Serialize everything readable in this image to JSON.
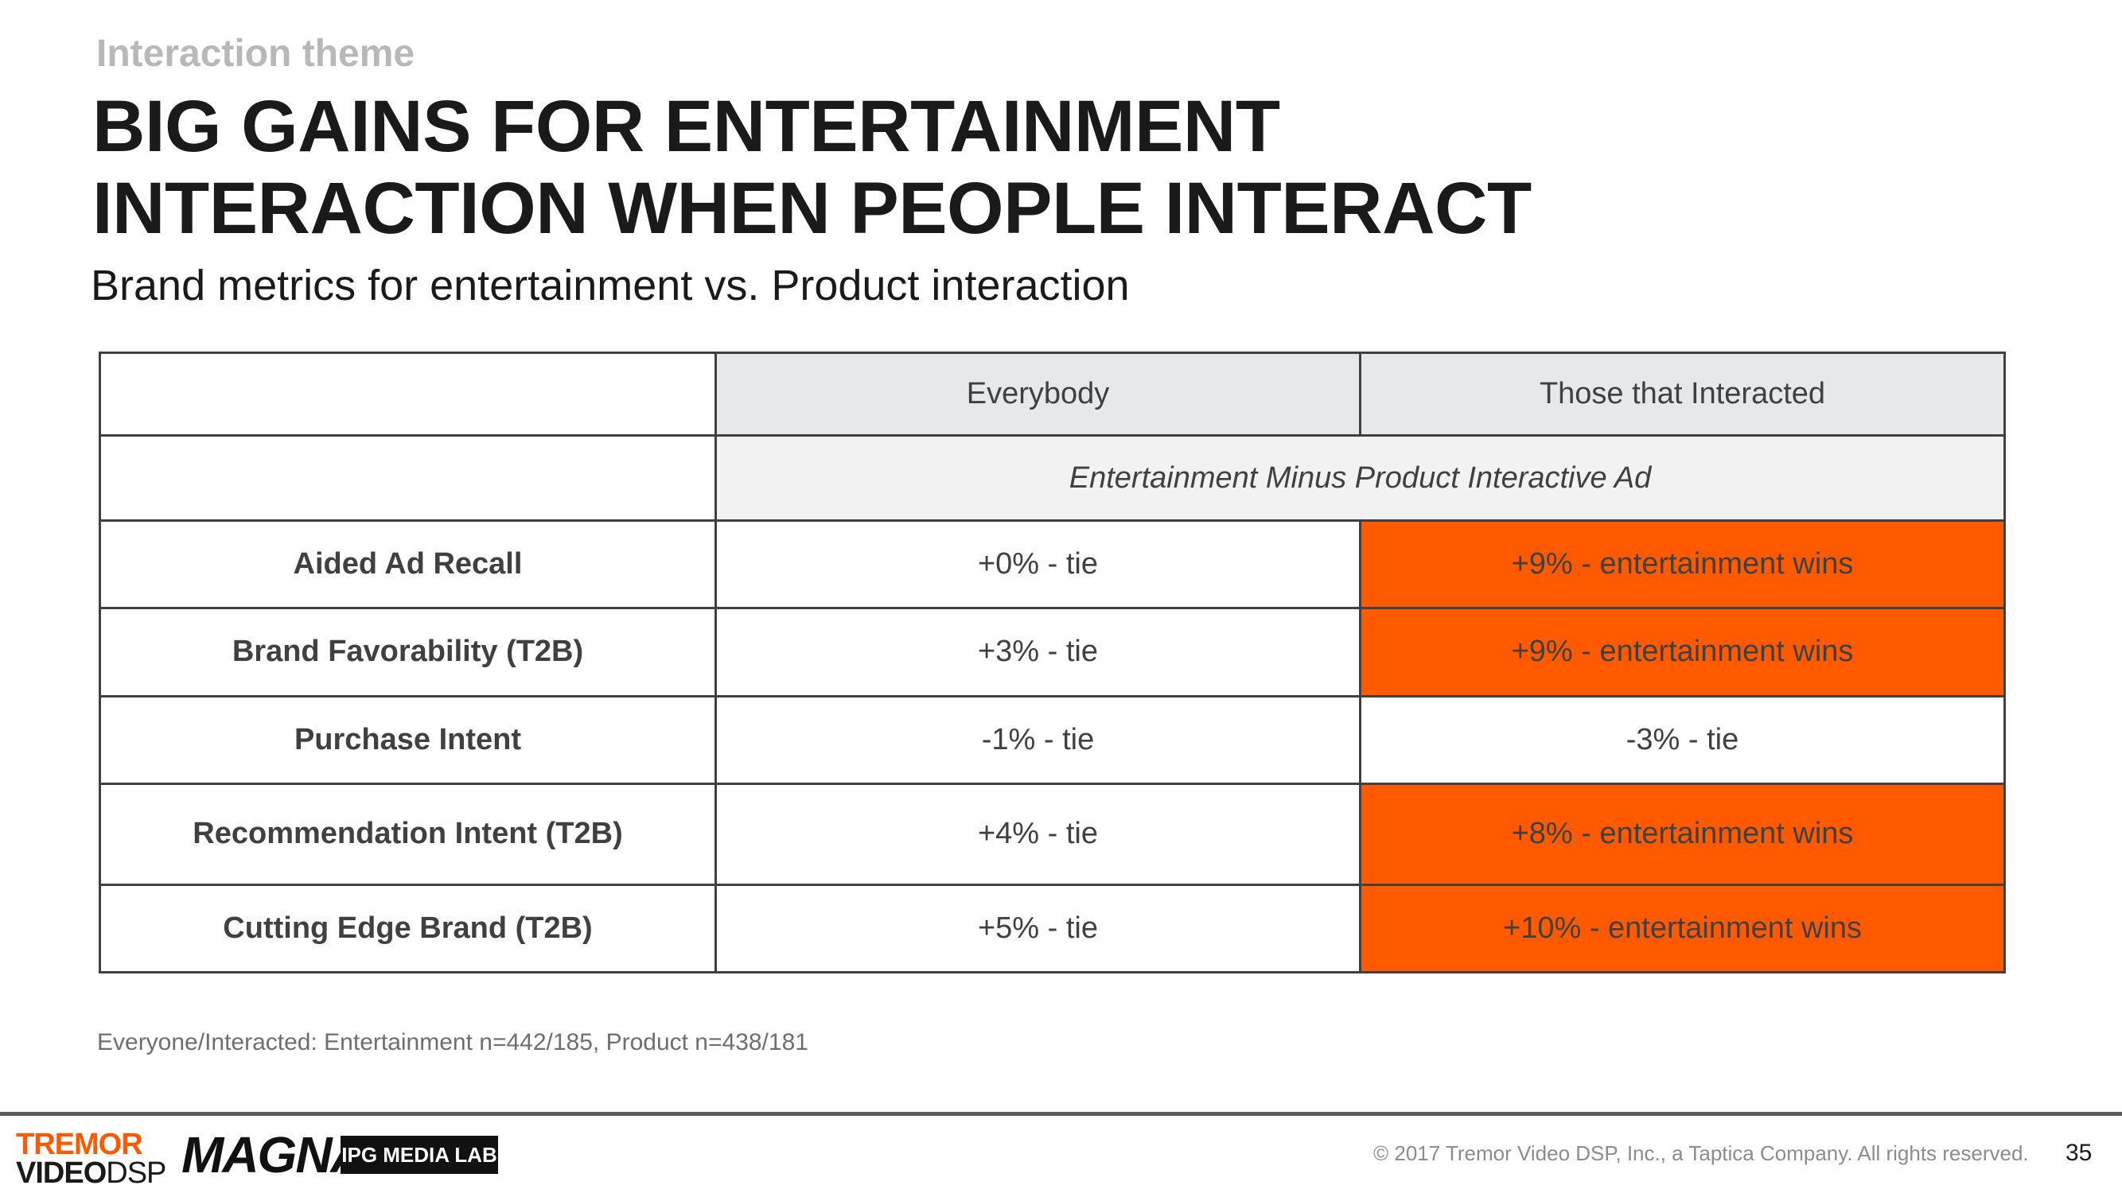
{
  "header": {
    "kicker": "Interaction theme",
    "title_line1": "BIG GAINS FOR ENTERTAINMENT",
    "title_line2": "INTERACTION WHEN PEOPLE INTERACT",
    "subtitle": "Brand metrics for entertainment vs. Product interaction"
  },
  "table": {
    "columns": [
      "",
      "Everybody",
      "Those that Interacted"
    ],
    "subheader": "Entertainment Minus Product Interactive Ad",
    "rows": [
      {
        "metric": "Aided Ad Recall",
        "everybody": "+0% - tie",
        "interacted": "+9% - entertainment wins"
      },
      {
        "metric": "Brand Favorability (T2B)",
        "everybody": "+3% - tie",
        "interacted": "+9% - entertainment wins"
      },
      {
        "metric": "Purchase Intent",
        "everybody": "-1% - tie",
        "interacted": "-3% - tie"
      },
      {
        "metric": "Recommendation Intent (T2B)",
        "everybody": "+4% - tie",
        "interacted": "+8% - entertainment wins"
      },
      {
        "metric": "Cutting Edge Brand (T2B)",
        "everybody": "+5% - tie",
        "interacted": "+10% - entertainment wins"
      }
    ],
    "highlight_color": "#ff5a00"
  },
  "footnote": "Everyone/Interacted: Entertainment n=442/185, Product n=438/181",
  "footer": {
    "logo_tremor_line1": "TREMOR",
    "logo_tremor_video": "VIDEO",
    "logo_tremor_dsp": "DSP",
    "logo_magna": "MAGNA",
    "logo_ipg": "IPG MEDIA LAB",
    "copyright": "© 2017 Tremor Video DSP, Inc., a Taptica Company. All rights reserved.",
    "page_number": "35"
  }
}
